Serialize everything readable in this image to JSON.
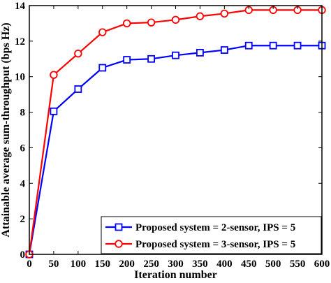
{
  "chart_data": {
    "type": "line",
    "title": "",
    "xlabel": "Iteration number",
    "ylabel": "Attainable average sum-throughput (bps Hz)",
    "xlim": [
      0,
      600
    ],
    "ylim": [
      0,
      14
    ],
    "xticks": [
      0,
      50,
      100,
      150,
      200,
      250,
      300,
      350,
      400,
      450,
      500,
      550,
      600
    ],
    "yticks": [
      0,
      2,
      4,
      6,
      8,
      10,
      12,
      14
    ],
    "grid": false,
    "legend_position": "bottom-right",
    "x": [
      0,
      50,
      100,
      150,
      200,
      250,
      300,
      350,
      400,
      450,
      500,
      550,
      600
    ],
    "series": [
      {
        "name": "Proposed system = 2-sensor, IPS = 5",
        "values": [
          0,
          8.05,
          9.3,
          10.5,
          10.95,
          11.0,
          11.2,
          11.35,
          11.5,
          11.75,
          11.75,
          11.75,
          11.75
        ],
        "color": "#0000ff",
        "marker": "square"
      },
      {
        "name": "Proposed system = 3-sensor, IPS = 5",
        "values": [
          0,
          10.1,
          11.3,
          12.5,
          13.0,
          13.05,
          13.2,
          13.4,
          13.55,
          13.75,
          13.75,
          13.75,
          13.75
        ],
        "color": "#ff0000",
        "marker": "circle"
      }
    ]
  }
}
